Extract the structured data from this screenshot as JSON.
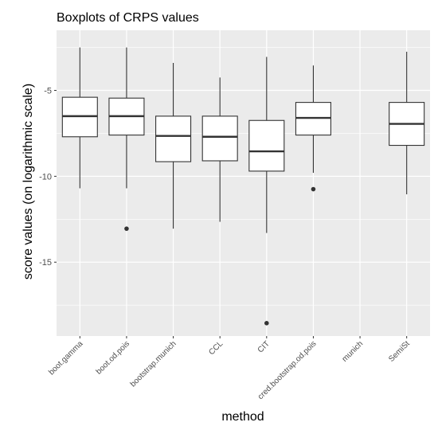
{
  "chart_data": {
    "type": "boxplot",
    "title": "Boxplots of CRPS values",
    "xlabel": "method",
    "ylabel": "score values (on logarithmic scale)",
    "ylim": [
      -19.3,
      -1.5
    ],
    "y_ticks": [
      -5,
      -10,
      -15
    ],
    "y_tick_labels": [
      "-5",
      "-10",
      "-15"
    ],
    "grid": true,
    "categories": [
      "boot.gamma",
      "boot.od.pois",
      "bootstrap.munich",
      "CCL",
      "CIT",
      "cred.bootstrap.od.pois",
      "munich",
      "SemiSt"
    ],
    "boxes": [
      {
        "category": "boot.gamma",
        "whisker_low": -10.7,
        "q1": -7.7,
        "median": -6.5,
        "q3": -5.4,
        "whisker_high": -2.5,
        "outliers": []
      },
      {
        "category": "boot.od.pois",
        "whisker_low": -10.7,
        "q1": -7.6,
        "median": -6.5,
        "q3": -5.45,
        "whisker_high": -2.5,
        "outliers": [
          -13.05
        ]
      },
      {
        "category": "bootstrap.munich",
        "whisker_low": -13.05,
        "q1": -9.15,
        "median": -7.65,
        "q3": -6.5,
        "whisker_high": -3.4,
        "outliers": []
      },
      {
        "category": "CCL",
        "whisker_low": -12.65,
        "q1": -9.1,
        "median": -7.7,
        "q3": -6.5,
        "whisker_high": -4.25,
        "outliers": []
      },
      {
        "category": "CIT",
        "whisker_low": -13.3,
        "q1": -9.7,
        "median": -8.55,
        "q3": -6.75,
        "whisker_high": -3.05,
        "outliers": [
          -18.55
        ]
      },
      {
        "category": "cred.bootstrap.od.pois",
        "whisker_low": -9.8,
        "q1": -7.6,
        "median": -6.6,
        "q3": -5.7,
        "whisker_high": -3.55,
        "outliers": [
          -10.75
        ]
      },
      {
        "category": "munich",
        "empty": true
      },
      {
        "category": "SemiSt",
        "whisker_low": -11.05,
        "q1": -8.2,
        "median": -6.95,
        "q3": -5.7,
        "whisker_high": -2.75,
        "outliers": []
      }
    ],
    "colors": {
      "panel": "#ebebeb",
      "grid": "#ffffff",
      "box_fill": "#ffffff",
      "box_stroke": "#333333",
      "tick_text": "#4d4d4d"
    }
  }
}
